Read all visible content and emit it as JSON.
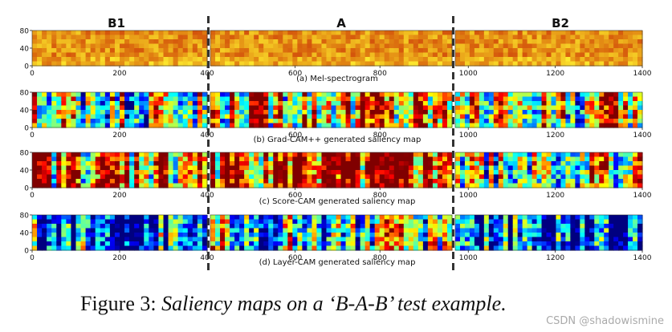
{
  "figure": {
    "caption_prefix": "Figure 3:",
    "caption_text": "Saliency maps on a ‘B-A-B’ test example."
  },
  "watermark": "CSDN @shadowismine",
  "chart_data": {
    "type": "heatmap",
    "segment_headers": [
      "B1",
      "A",
      "B2"
    ],
    "x_range": [
      0,
      1400
    ],
    "y_range": [
      0,
      80
    ],
    "segment_boundaries": [
      400,
      970
    ],
    "divider_style": "dashed",
    "panels": [
      {
        "title": "(a) Mel-spectrogram",
        "colormap": "warm",
        "left_ticks": [
          0,
          200,
          400
        ],
        "mid_ticks": [
          600,
          800
        ],
        "right_ticks": [
          1000,
          1200,
          1400
        ],
        "yticks": [
          0,
          40,
          80
        ],
        "left_range": [
          0,
          400
        ],
        "mid_range": [
          400,
          970
        ],
        "right_range": [
          970,
          1400
        ]
      },
      {
        "title": "(b) Grad-CAM++ generated saliency map",
        "colormap": "jet",
        "left_ticks": [
          0,
          200,
          400
        ],
        "mid_ticks": [
          600,
          800
        ],
        "right_ticks": [
          1000,
          1200,
          1400
        ],
        "yticks": [
          0,
          40,
          80
        ],
        "left_range": [
          0,
          400
        ],
        "mid_range": [
          400,
          970
        ],
        "right_range": [
          970,
          1400
        ]
      },
      {
        "title": "(c) Score-CAM generated saliency map",
        "colormap": "jet",
        "left_ticks": [
          0,
          200,
          400
        ],
        "mid_ticks": [
          600,
          800
        ],
        "right_ticks": [
          1000,
          1200,
          1400
        ],
        "yticks": [
          0,
          40,
          80
        ],
        "left_range": [
          0,
          400
        ],
        "mid_range": [
          400,
          970
        ],
        "right_range": [
          970,
          1400
        ]
      },
      {
        "title": "(d) Layer-CAM generated saliency map",
        "colormap": "jet",
        "left_ticks": [
          0,
          200,
          400
        ],
        "mid_ticks": [
          600,
          800
        ],
        "right_ticks": [
          1000,
          1200,
          1400
        ],
        "yticks": [
          0,
          40,
          80
        ],
        "left_range": [
          0,
          400
        ],
        "mid_range": [
          400,
          970
        ],
        "right_range": [
          970,
          1400
        ]
      }
    ]
  }
}
